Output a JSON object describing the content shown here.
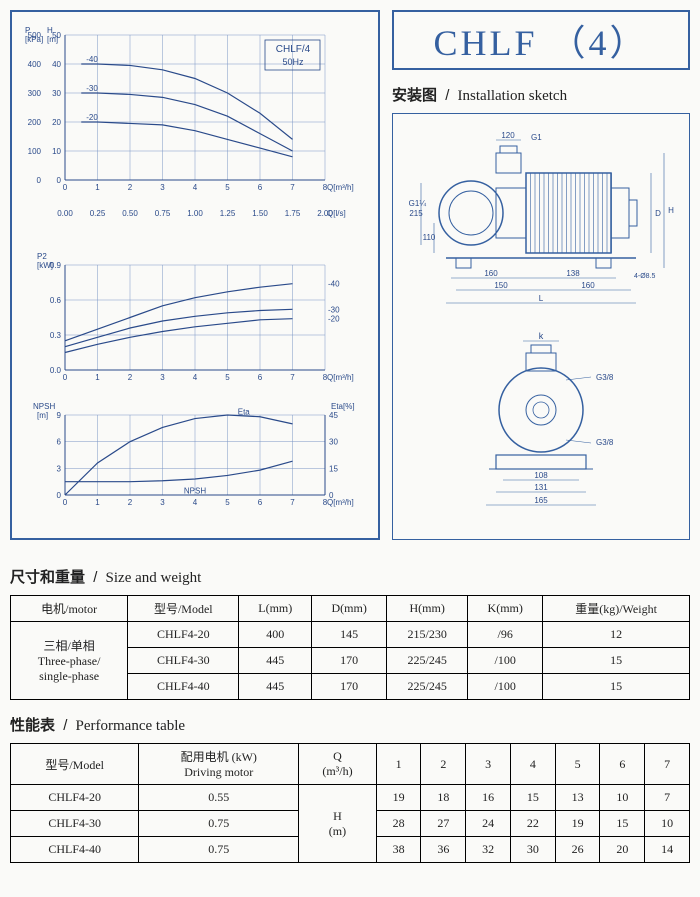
{
  "main_title": "CHLF （4）",
  "install_head_cn": "安装图",
  "install_head_en": "Installation sketch",
  "size_head_cn": "尺寸和重量",
  "size_head_en": "Size and weight",
  "perf_head_cn": "性能表",
  "perf_head_en": "Performance table",
  "chart1": {
    "ylabel_l": "P\n[kPa]",
    "ylabel_r": "H\n[m]",
    "title1": "CHLF/4",
    "title2": "50Hz",
    "y_kpa": [
      0,
      100,
      200,
      300,
      400,
      500
    ],
    "y_m": [
      0,
      10,
      20,
      30,
      40,
      50
    ],
    "x_q": [
      0,
      1,
      2,
      3,
      4,
      5,
      6,
      7,
      8
    ],
    "x_qls": [
      "0.00",
      "0.25",
      "0.50",
      "0.75",
      "1.00",
      "1.25",
      "1.50",
      "1.75",
      "2.00"
    ],
    "xlabel1": "Q[m³/h]",
    "xlabel2": "Q[l/s]",
    "series": [
      {
        "label": "-40",
        "pts": [
          [
            0.5,
            40
          ],
          [
            1,
            40
          ],
          [
            2,
            39.5
          ],
          [
            3,
            38
          ],
          [
            4,
            35
          ],
          [
            5,
            30
          ],
          [
            6,
            23
          ],
          [
            7,
            14
          ]
        ],
        "color": "#2a4a8a"
      },
      {
        "label": "-30",
        "pts": [
          [
            0.5,
            30
          ],
          [
            1,
            30
          ],
          [
            2,
            29.5
          ],
          [
            3,
            28.5
          ],
          [
            4,
            26
          ],
          [
            5,
            22
          ],
          [
            6,
            16
          ],
          [
            7,
            10
          ]
        ],
        "color": "#2a4a8a"
      },
      {
        "label": "-20",
        "pts": [
          [
            0.5,
            20
          ],
          [
            1,
            20
          ],
          [
            2,
            19.5
          ],
          [
            3,
            19
          ],
          [
            4,
            17
          ],
          [
            5,
            14
          ],
          [
            6,
            11
          ],
          [
            7,
            8
          ]
        ],
        "color": "#2a4a8a"
      }
    ]
  },
  "chart2": {
    "ylabel": "P2\n[kW]",
    "y": [
      0,
      0.3,
      0.6,
      0.9
    ],
    "x": [
      0,
      1,
      2,
      3,
      4,
      5,
      6,
      7,
      8
    ],
    "xlabel": "Q[m³/h]",
    "series": [
      {
        "label": "-40",
        "pts": [
          [
            0,
            0.25
          ],
          [
            1,
            0.35
          ],
          [
            2,
            0.45
          ],
          [
            3,
            0.55
          ],
          [
            4,
            0.62
          ],
          [
            5,
            0.67
          ],
          [
            6,
            0.71
          ],
          [
            7,
            0.74
          ]
        ]
      },
      {
        "label": "-30",
        "pts": [
          [
            0,
            0.2
          ],
          [
            1,
            0.28
          ],
          [
            2,
            0.36
          ],
          [
            3,
            0.42
          ],
          [
            4,
            0.46
          ],
          [
            5,
            0.49
          ],
          [
            6,
            0.51
          ],
          [
            7,
            0.52
          ]
        ]
      },
      {
        "label": "-20",
        "pts": [
          [
            0,
            0.15
          ],
          [
            1,
            0.22
          ],
          [
            2,
            0.28
          ],
          [
            3,
            0.33
          ],
          [
            4,
            0.37
          ],
          [
            5,
            0.4
          ],
          [
            6,
            0.43
          ],
          [
            7,
            0.44
          ]
        ]
      }
    ]
  },
  "chart3": {
    "ylabel_l": "NPSH\n[m]",
    "ylabel_r": "Eta[%]",
    "yl": [
      0,
      3,
      6,
      9
    ],
    "yr": [
      0,
      15,
      30,
      45
    ],
    "x": [
      0,
      1,
      2,
      3,
      4,
      5,
      6,
      7,
      8
    ],
    "xlabel": "Q[m³/h]",
    "eta_label": "Eta",
    "npsh_label": "NPSH",
    "eta": [
      [
        0,
        0
      ],
      [
        1,
        18
      ],
      [
        2,
        30
      ],
      [
        3,
        38
      ],
      [
        4,
        43
      ],
      [
        5,
        45
      ],
      [
        6,
        44
      ],
      [
        7,
        40
      ]
    ],
    "npsh": [
      [
        0,
        1.5
      ],
      [
        1,
        1.5
      ],
      [
        2,
        1.5
      ],
      [
        3,
        1.6
      ],
      [
        4,
        1.8
      ],
      [
        5,
        2.2
      ],
      [
        6,
        2.8
      ],
      [
        7,
        3.8
      ]
    ]
  },
  "diagram_dims": {
    "top_120": "120",
    "G1": "G1",
    "G1_1_4": "G1¼",
    "215": "215",
    "110": "110",
    "160a": "160",
    "138": "138",
    "4_085": "4-Ø8.5",
    "150": "150",
    "160b": "160",
    "L": "L",
    "D": "D",
    "H": "H",
    "k": "k",
    "G3_8": "G3/8",
    "108": "108",
    "131": "131",
    "165": "165"
  },
  "size_table": {
    "headers": [
      "电机/motor",
      "型号/Model",
      "L(mm)",
      "D(mm)",
      "H(mm)",
      "K(mm)",
      "重量(kg)/Weight"
    ],
    "motor_label": "三相/单相\nThree-phase/\nsingle-phase",
    "rows": [
      [
        "CHLF4-20",
        "400",
        "145",
        "215/230",
        "/96",
        "12"
      ],
      [
        "CHLF4-30",
        "445",
        "170",
        "225/245",
        "/100",
        "15"
      ],
      [
        "CHLF4-40",
        "445",
        "170",
        "225/245",
        "/100",
        "15"
      ]
    ]
  },
  "perf_table": {
    "headers": [
      "型号/Model",
      "配用电机 (kW)\nDriving motor",
      "Q\n(m³/h)",
      "1",
      "2",
      "3",
      "4",
      "5",
      "6",
      "7"
    ],
    "h_label": "H\n(m)",
    "rows": [
      [
        "CHLF4-20",
        "0.55",
        "19",
        "18",
        "16",
        "15",
        "13",
        "10",
        "7"
      ],
      [
        "CHLF4-30",
        "0.75",
        "28",
        "27",
        "24",
        "22",
        "19",
        "15",
        "10"
      ],
      [
        "CHLF4-40",
        "0.75",
        "38",
        "36",
        "32",
        "30",
        "26",
        "20",
        "14"
      ]
    ]
  },
  "colors": {
    "line": "#2a4a8a",
    "grid": "#7a95c5",
    "border": "#3560a0"
  }
}
